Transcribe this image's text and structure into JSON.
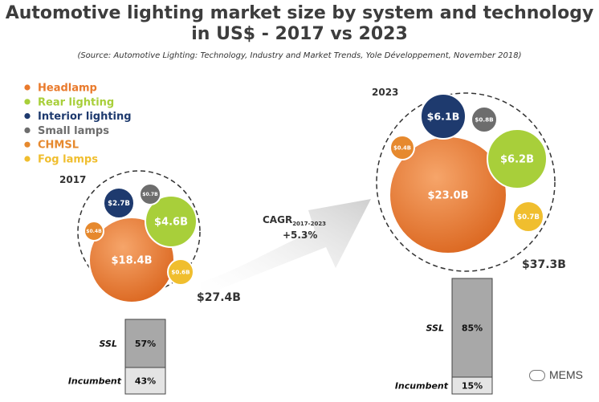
{
  "title": {
    "line1": "Automotive lighting market size by system and technology",
    "line2": "in US$ - 2017 vs 2023"
  },
  "source": "(Source: Automotive Lighting: Technology, Industry and Market Trends, Yole Développement, November 2018)",
  "colors": {
    "headlamp": "#e97a2c",
    "rear": "#a8cf3a",
    "interior": "#1e3a6e",
    "small": "#6d6d6d",
    "chmsl": "#e6892e",
    "fog": "#f0be2e"
  },
  "chart_data": {
    "type": "bubble",
    "title": "Automotive lighting market size by system and technology in US$ - 2017 vs 2023",
    "legend": [
      {
        "key": "headlamp",
        "label": "Headlamp"
      },
      {
        "key": "rear",
        "label": "Rear lighting"
      },
      {
        "key": "interior",
        "label": "Interior lighting"
      },
      {
        "key": "small",
        "label": "Small lamps"
      },
      {
        "key": "chmsl",
        "label": "CHMSL"
      },
      {
        "key": "fog",
        "label": "Fog lamps"
      }
    ],
    "years": [
      {
        "year": "2017",
        "total": 27.4,
        "total_label": "$27.4B",
        "bubbles": [
          {
            "key": "headlamp",
            "value": 18.4,
            "label": "$18.4B"
          },
          {
            "key": "rear",
            "value": 4.6,
            "label": "$4.6B"
          },
          {
            "key": "interior",
            "value": 2.7,
            "label": "$2.7B"
          },
          {
            "key": "small",
            "value": 0.7,
            "label": "$0.7B"
          },
          {
            "key": "chmsl",
            "value": 0.4,
            "label": "$0.4B"
          },
          {
            "key": "fog",
            "value": 0.6,
            "label": "$0.6B"
          }
        ],
        "technology": {
          "ssl_pct": 57,
          "ssl_label": "57%",
          "incumbent_pct": 43,
          "incumbent_label": "43%"
        }
      },
      {
        "year": "2023",
        "total": 37.3,
        "total_label": "$37.3B",
        "bubbles": [
          {
            "key": "headlamp",
            "value": 23.0,
            "label": "$23.0B"
          },
          {
            "key": "rear",
            "value": 6.2,
            "label": "$6.2B"
          },
          {
            "key": "interior",
            "value": 6.1,
            "label": "$6.1B"
          },
          {
            "key": "small",
            "value": 0.8,
            "label": "$0.8B"
          },
          {
            "key": "chmsl",
            "value": 0.4,
            "label": "$0.4B"
          },
          {
            "key": "fog",
            "value": 0.7,
            "label": "$0.7B"
          }
        ],
        "technology": {
          "ssl_pct": 85,
          "ssl_label": "85%",
          "incumbent_pct": 15,
          "incumbent_label": "15%"
        }
      }
    ],
    "cagr": {
      "label": "CAGR",
      "subscript": "2017-2023",
      "value_label": "+5.3%"
    },
    "tech_labels": {
      "ssl": "SSL",
      "incumbent": "Incumbent"
    }
  },
  "watermark": "MEMS"
}
